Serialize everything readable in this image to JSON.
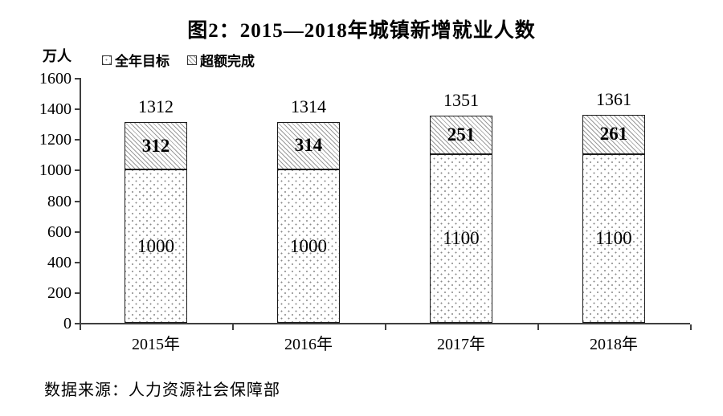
{
  "title": "图2：2015—2018年城镇新增就业人数",
  "unit_label": "万人",
  "legend": {
    "items": [
      {
        "label": "全年目标",
        "pattern": "dots"
      },
      {
        "label": "超额完成",
        "pattern": "hatch"
      }
    ]
  },
  "source": "数据来源：人力资源社会保障部",
  "chart_data": {
    "type": "bar",
    "stacked": true,
    "title": "图2：2015—2018年城镇新增就业人数",
    "ylabel": "万人",
    "categories": [
      "2015年",
      "2016年",
      "2017年",
      "2018年"
    ],
    "series": [
      {
        "name": "全年目标",
        "pattern": "dots",
        "values": [
          1000,
          1000,
          1100,
          1100
        ]
      },
      {
        "name": "超额完成",
        "pattern": "hatch",
        "values": [
          312,
          314,
          251,
          261
        ]
      }
    ],
    "totals": [
      1312,
      1314,
      1351,
      1361
    ],
    "ylim": [
      0,
      1600
    ],
    "ytick_step": 200,
    "grid": false,
    "legend_position": "top-left"
  }
}
